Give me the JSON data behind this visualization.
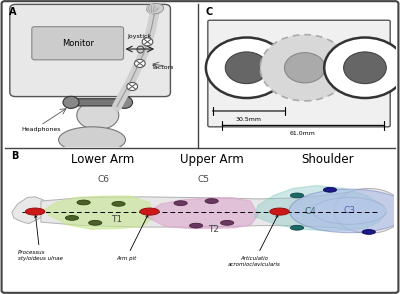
{
  "fig_width": 4.0,
  "fig_height": 2.94,
  "dpi": 100,
  "bg_color": "#ffffff",
  "panel_A": {
    "label": "A",
    "monitor_text": "Monitor",
    "joystick_text": "Joystick",
    "tactors_text": "Tactors",
    "headphones_text": "Headphones"
  },
  "panel_B": {
    "label": "B",
    "title_lower": "Lower Arm",
    "title_upper": "Upper Arm",
    "title_shoulder": "Shoulder",
    "c6_color": "#c8e6a0",
    "c5_color": "#e0b0d5",
    "c4_color": "#a0d8d5",
    "c3_color": "#b0b8e8",
    "arm_color": "#e8e8e8",
    "red_dot_color": "#cc2020",
    "green_dot_color": "#506030",
    "purple_dot_color": "#604060",
    "teal_dot_color": "#206060",
    "darkblue_dot_color": "#202080"
  },
  "panel_C": {
    "label": "C",
    "measure1": "30.5mm",
    "measure2": "61.0mm",
    "box_color": "#eeeeee",
    "circle_bg": "#f0f0f0",
    "inner_dark": "#666666",
    "middle_inner": "#aaaaaa",
    "middle_outer_color": "#d0d0d0"
  }
}
